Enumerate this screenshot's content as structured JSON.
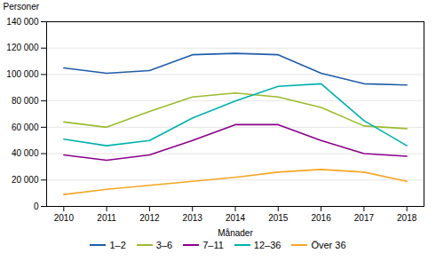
{
  "chart_data": {
    "type": "line",
    "x": [
      2010,
      2011,
      2012,
      2013,
      2014,
      2015,
      2016,
      2017,
      2018
    ],
    "series": [
      {
        "name": "1–2",
        "color": "#1F5DA8",
        "values": [
          105000,
          101000,
          103000,
          115000,
          116000,
          115000,
          101000,
          93000,
          92000
        ]
      },
      {
        "name": "3–6",
        "color": "#9BBB2E",
        "values": [
          64000,
          60000,
          72000,
          83000,
          86000,
          83000,
          75000,
          61000,
          59000
        ]
      },
      {
        "name": "7–11",
        "color": "#8B008B",
        "values": [
          39000,
          35000,
          39000,
          50000,
          62000,
          62000,
          50000,
          40000,
          38000
        ]
      },
      {
        "name": "12–36",
        "color": "#00B0B0",
        "values": [
          51000,
          46000,
          50000,
          67000,
          80000,
          91000,
          93000,
          65000,
          46000
        ]
      },
      {
        "name": "Över 36",
        "color": "#F5A623",
        "values": [
          9000,
          13000,
          16000,
          19000,
          22000,
          26000,
          28000,
          26000,
          19000
        ]
      }
    ],
    "y_label": "Personer",
    "x_label": "Månader",
    "xlim": [
      2009.6,
      2018.4
    ],
    "xticks": [
      2010,
      2011,
      2012,
      2013,
      2014,
      2015,
      2016,
      2017,
      2018
    ],
    "ylim": [
      0,
      140000
    ],
    "yticks": [
      0,
      {
        "value": 20000,
        "label": "20 000"
      },
      {
        "value": 40000,
        "label": "40 000"
      },
      {
        "value": 60000,
        "label": "60 000"
      },
      {
        "value": 80000,
        "label": "80 000"
      },
      {
        "value": 100000,
        "label": "100 000"
      },
      {
        "value": 120000,
        "label": "120 000"
      },
      {
        "value": 140000,
        "label": "140 000"
      }
    ],
    "grid": true,
    "legend": "bottom"
  }
}
